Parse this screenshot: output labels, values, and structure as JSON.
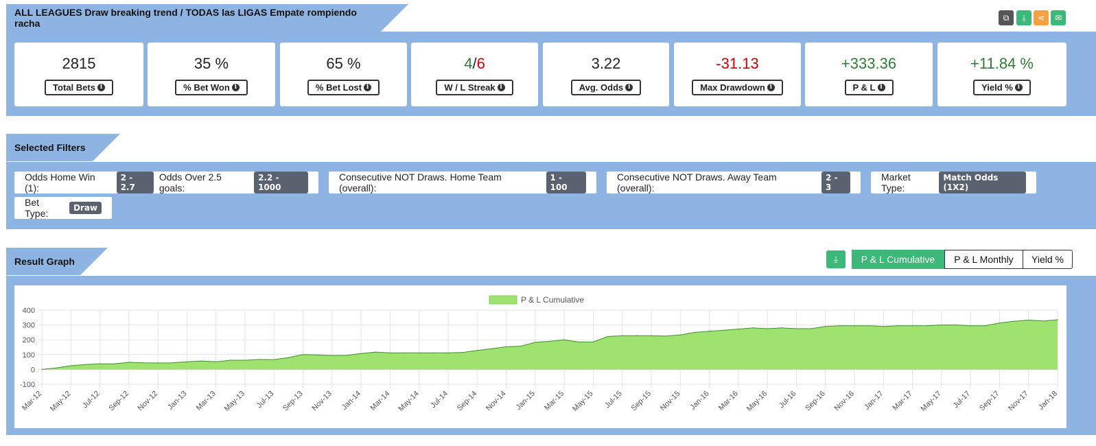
{
  "header": {
    "title": "ALL LEAGUES Draw breaking trend / TODAS las LIGAS Empate rompiendo racha"
  },
  "header_icons": [
    {
      "name": "copy-icon",
      "color": "#555555",
      "glyph": "⧉"
    },
    {
      "name": "download-icon",
      "color": "#3cb878",
      "glyph": "⤓"
    },
    {
      "name": "share-icon",
      "color": "#f5a142",
      "glyph": "⋖"
    },
    {
      "name": "email-icon",
      "color": "#3cb878",
      "glyph": "✉"
    }
  ],
  "stats": [
    {
      "value": "2815",
      "label": "Total Bets"
    },
    {
      "value": "35 %",
      "label": "% Bet Won"
    },
    {
      "value": "65 %",
      "label": "% Bet Lost"
    },
    {
      "value_win": "4",
      "value_sep": "/",
      "value_loss": "6",
      "label": "W / L Streak"
    },
    {
      "value": "3.22",
      "label": "Avg. Odds"
    },
    {
      "value": "-31.13",
      "label": "Max Drawdown",
      "color": "#d40000"
    },
    {
      "value": "+333.36",
      "label": "P & L",
      "color": "#2e7d32"
    },
    {
      "value": "+11.84 %",
      "label": "Yield %",
      "color": "#2e7d32"
    }
  ],
  "filters_section": {
    "title": "Selected Filters"
  },
  "filters": [
    {
      "label1": "Odds Home Win (1):",
      "value1": "2 - 2.7",
      "label2": "Odds Over 2.5 goals:",
      "value2": "2.2 - 1000"
    },
    {
      "label": "Consecutive NOT Draws. Home Team (overall):",
      "value": "1 - 100"
    },
    {
      "label": "Consecutive NOT Draws. Away Team (overall):",
      "value": "2 - 3"
    },
    {
      "label": "Market Type:",
      "value": "Match Odds (1X2)"
    },
    {
      "label": "Bet Type:",
      "value": "Draw"
    }
  ],
  "graph_section": {
    "title": "Result Graph",
    "tabs": [
      "P & L Cumulative",
      "P & L Monthly",
      "Yield %"
    ],
    "active_tab": 0
  },
  "chart_data": {
    "type": "area",
    "series": [
      {
        "name": "P & L Cumulative",
        "color": "#a0e26f",
        "stroke": "#3f8f2b"
      }
    ],
    "ylim": [
      -100,
      400
    ],
    "yticks": [
      400,
      300,
      200,
      100,
      0,
      -100
    ],
    "xticks": [
      "Mar-12",
      "May-12",
      "Jul-12",
      "Sep-12",
      "Nov-12",
      "Jan-13",
      "Mar-13",
      "May-13",
      "Jul-13",
      "Sep-13",
      "Nov-13",
      "Jan-14",
      "Mar-14",
      "May-14",
      "Jul-14",
      "Sep-14",
      "Nov-14",
      "Jan-15",
      "Mar-15",
      "May-15",
      "Jul-15",
      "Sep-15",
      "Nov-15",
      "Jan-16",
      "Mar-16",
      "May-16",
      "Jul-16",
      "Sep-16",
      "Nov-16",
      "Jan-17",
      "Mar-17",
      "May-17",
      "Jul-17",
      "Sep-17",
      "Nov-17",
      "Jan-18"
    ],
    "x": [
      "Mar-12",
      "Apr-12",
      "May-12",
      "Jun-12",
      "Jul-12",
      "Aug-12",
      "Sep-12",
      "Oct-12",
      "Nov-12",
      "Dec-12",
      "Jan-13",
      "Feb-13",
      "Mar-13",
      "Apr-13",
      "May-13",
      "Jun-13",
      "Jul-13",
      "Aug-13",
      "Sep-13",
      "Oct-13",
      "Nov-13",
      "Dec-13",
      "Jan-14",
      "Feb-14",
      "Mar-14",
      "Apr-14",
      "May-14",
      "Jun-14",
      "Jul-14",
      "Aug-14",
      "Sep-14",
      "Oct-14",
      "Nov-14",
      "Dec-14",
      "Jan-15",
      "Feb-15",
      "Mar-15",
      "Apr-15",
      "May-15",
      "Jun-15",
      "Jul-15",
      "Aug-15",
      "Sep-15",
      "Oct-15",
      "Nov-15",
      "Dec-15",
      "Jan-16",
      "Feb-16",
      "Mar-16",
      "Apr-16",
      "May-16",
      "Jun-16",
      "Jul-16",
      "Aug-16",
      "Sep-16",
      "Oct-16",
      "Nov-16",
      "Dec-16",
      "Jan-17",
      "Feb-17",
      "Mar-17",
      "Apr-17",
      "May-17",
      "Jun-17",
      "Jul-17",
      "Aug-17",
      "Sep-17",
      "Oct-17",
      "Nov-17",
      "Dec-17",
      "Jan-18"
    ],
    "values": [
      0,
      10,
      25,
      33,
      38,
      38,
      48,
      45,
      44,
      45,
      52,
      57,
      52,
      62,
      62,
      67,
      66,
      80,
      100,
      98,
      94,
      95,
      107,
      117,
      112,
      112,
      112,
      112,
      112,
      115,
      128,
      140,
      153,
      157,
      183,
      190,
      200,
      185,
      185,
      222,
      228,
      228,
      228,
      225,
      233,
      250,
      258,
      265,
      272,
      280,
      275,
      280,
      275,
      275,
      290,
      295,
      295,
      295,
      290,
      295,
      295,
      295,
      300,
      300,
      295,
      295,
      313,
      325,
      333,
      327,
      335
    ]
  }
}
